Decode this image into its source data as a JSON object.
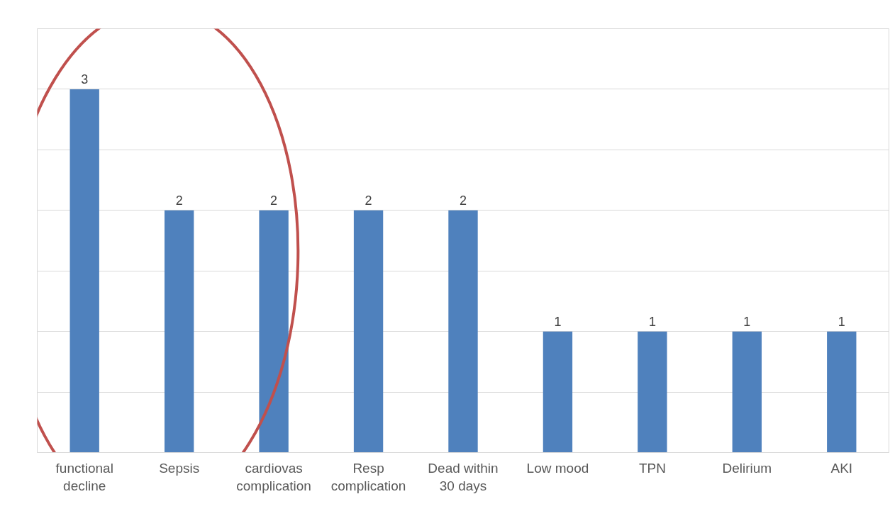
{
  "chart_data": {
    "type": "bar",
    "categories": [
      "functional\ndecline",
      "Sepsis",
      "cardiovas\ncomplication",
      "Resp\ncomplication",
      "Dead within\n30 days",
      "Low mood",
      "TPN",
      "Delirium",
      "AKI"
    ],
    "values": [
      3,
      2,
      2,
      2,
      2,
      1,
      1,
      1,
      1
    ],
    "color": "#4f81bd",
    "data_labels": true,
    "ylim": [
      0,
      3.5
    ],
    "yticks": [
      {
        "value": 0,
        "label": null
      },
      {
        "value": 0.5,
        "label": null
      },
      {
        "value": 1,
        "label": null
      },
      {
        "value": 1.5,
        "label": null
      },
      {
        "value": 2,
        "label": null
      },
      {
        "value": 2.5,
        "label": null
      },
      {
        "value": 3,
        "label": null
      },
      {
        "value": 3.5,
        "label": null
      }
    ],
    "grid": "y",
    "tick_labels": "x"
  }
}
